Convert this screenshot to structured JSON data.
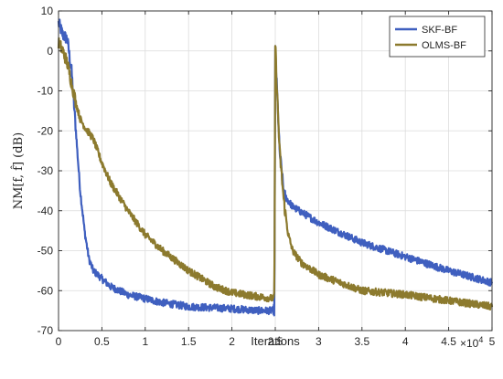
{
  "chart_data": {
    "type": "line",
    "xlabel": "Iterations",
    "ylabel": "NM[f, f̂] (dB)",
    "x_exponent_label": "×10",
    "x_exponent_power": "4",
    "xlim": [
      0,
      5
    ],
    "ylim": [
      -70,
      10
    ],
    "x_ticks": [
      0,
      0.5,
      1,
      1.5,
      2,
      2.5,
      3,
      3.5,
      4,
      4.5,
      5
    ],
    "x_tick_labels": [
      "0",
      "0.5",
      "1",
      "1.5",
      "2",
      "2.5",
      "3",
      "3.5",
      "4",
      "4.5",
      "5"
    ],
    "y_ticks": [
      -70,
      -60,
      -50,
      -40,
      -30,
      -20,
      -10,
      0,
      10
    ],
    "y_tick_labels": [
      "-70",
      "-60",
      "-50",
      "-40",
      "-30",
      "-20",
      "-10",
      "0",
      "10"
    ],
    "grid": true,
    "legend_position": "top-right",
    "series": [
      {
        "name": "SKF-BF",
        "color": "#3f5fbf",
        "points": [
          [
            0,
            7
          ],
          [
            0.05,
            4
          ],
          [
            0.1,
            3
          ],
          [
            0.15,
            -5
          ],
          [
            0.2,
            -20
          ],
          [
            0.25,
            -35
          ],
          [
            0.3,
            -45
          ],
          [
            0.35,
            -52
          ],
          [
            0.4,
            -55
          ],
          [
            0.5,
            -57
          ],
          [
            0.6,
            -59
          ],
          [
            0.8,
            -61
          ],
          [
            1.0,
            -62
          ],
          [
            1.2,
            -63
          ],
          [
            1.5,
            -64
          ],
          [
            2.0,
            -64.5
          ],
          [
            2.3,
            -65
          ],
          [
            2.49,
            -65
          ],
          [
            2.5,
            0
          ],
          [
            2.52,
            -10
          ],
          [
            2.55,
            -25
          ],
          [
            2.6,
            -36
          ],
          [
            2.7,
            -39
          ],
          [
            3.0,
            -43
          ],
          [
            3.5,
            -48
          ],
          [
            4.0,
            -51.5
          ],
          [
            4.5,
            -55
          ],
          [
            5.0,
            -58
          ]
        ]
      },
      {
        "name": "OLMS-BF",
        "color": "#8c7a2e",
        "points": [
          [
            0,
            2
          ],
          [
            0.05,
            0
          ],
          [
            0.1,
            -3
          ],
          [
            0.15,
            -8
          ],
          [
            0.2,
            -13
          ],
          [
            0.25,
            -17
          ],
          [
            0.3,
            -19
          ],
          [
            0.4,
            -22
          ],
          [
            0.5,
            -28
          ],
          [
            0.6,
            -33
          ],
          [
            0.8,
            -40
          ],
          [
            1.0,
            -46
          ],
          [
            1.2,
            -50
          ],
          [
            1.5,
            -55
          ],
          [
            1.8,
            -59
          ],
          [
            2.0,
            -60.5
          ],
          [
            2.3,
            -61.5
          ],
          [
            2.49,
            -62
          ],
          [
            2.5,
            2
          ],
          [
            2.52,
            -10
          ],
          [
            2.55,
            -25
          ],
          [
            2.6,
            -38
          ],
          [
            2.65,
            -46
          ],
          [
            2.7,
            -50
          ],
          [
            2.8,
            -53
          ],
          [
            3.0,
            -56
          ],
          [
            3.5,
            -60
          ],
          [
            4.0,
            -61
          ],
          [
            4.5,
            -62.5
          ],
          [
            5.0,
            -64
          ]
        ]
      }
    ]
  }
}
